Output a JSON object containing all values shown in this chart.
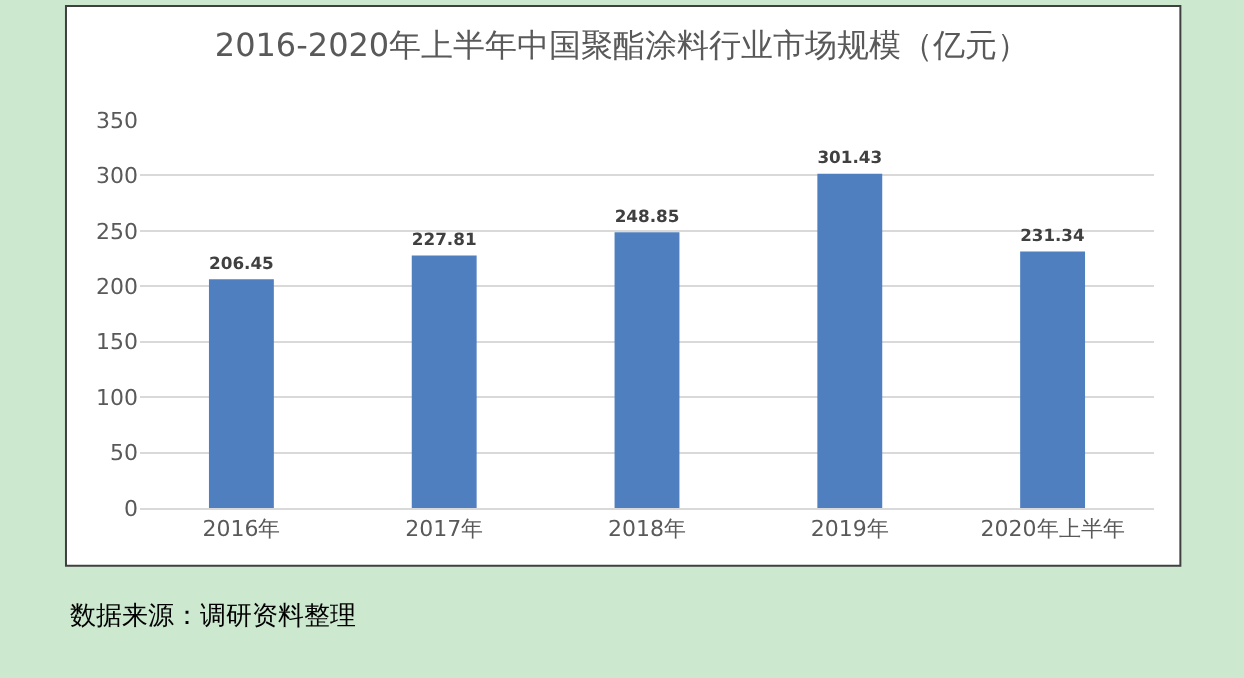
{
  "chart_data": {
    "type": "bar",
    "title": "2016-2020年上半年中国聚酯涂料行业市场规模（亿元）",
    "categories": [
      "2016年",
      "2017年",
      "2018年",
      "2019年",
      "2020年上半年"
    ],
    "values": [
      206.45,
      227.81,
      248.85,
      301.43,
      231.34
    ],
    "color": "#4f7fbf",
    "ylim": [
      0,
      350
    ],
    "yticks": [
      0,
      50,
      100,
      150,
      200,
      250,
      300,
      350
    ],
    "grid": "y",
    "legend": false,
    "data_labels": true,
    "annotations": [
      "数据来源：调研资料整理"
    ]
  }
}
